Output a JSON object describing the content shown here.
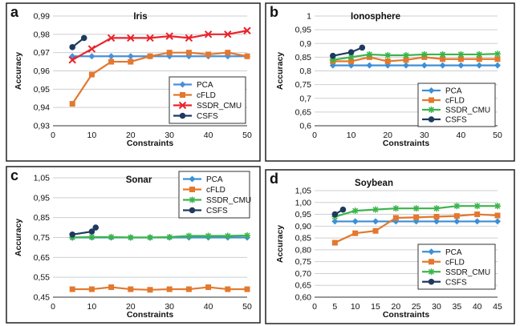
{
  "chart_data": [
    {
      "panel_letter": "a",
      "type": "line",
      "title": "Iris",
      "xlabel": "Constraints",
      "ylabel": "Accuracy",
      "xlim": [
        0,
        50
      ],
      "ylim": [
        0.93,
        0.99
      ],
      "xticks": [
        0,
        10,
        20,
        30,
        40,
        50
      ],
      "yticks": [
        0.93,
        0.94,
        0.95,
        0.96,
        0.97,
        0.98,
        0.99
      ],
      "ytick_labels": [
        "0,93",
        "0,94",
        "0,95",
        "0,96",
        "0,97",
        "0,98",
        "0,99"
      ],
      "grid": "horizontal",
      "legend_position": "lower-right",
      "series": [
        {
          "name": "PCA",
          "color": "#4a90d9",
          "marker": "diamond",
          "x": [
            5,
            10,
            15,
            20,
            25,
            30,
            35,
            40,
            45,
            50
          ],
          "y": [
            0.968,
            0.968,
            0.968,
            0.968,
            0.968,
            0.968,
            0.968,
            0.968,
            0.968,
            0.968
          ]
        },
        {
          "name": "cFLD",
          "color": "#e3782e",
          "marker": "square",
          "x": [
            5,
            10,
            15,
            20,
            25,
            30,
            35,
            40,
            45,
            50
          ],
          "y": [
            0.942,
            0.958,
            0.965,
            0.965,
            0.968,
            0.97,
            0.97,
            0.969,
            0.97,
            0.968
          ]
        },
        {
          "name": "SSDR_CMU",
          "color": "#e8242c",
          "marker": "x",
          "x": [
            5,
            10,
            15,
            20,
            25,
            30,
            35,
            40,
            45,
            50
          ],
          "y": [
            0.966,
            0.972,
            0.978,
            0.978,
            0.978,
            0.979,
            0.978,
            0.98,
            0.98,
            0.982
          ]
        },
        {
          "name": "CSFS",
          "color": "#1f3a5f",
          "marker": "circle",
          "x": [
            5,
            8
          ],
          "y": [
            0.973,
            0.978
          ]
        }
      ]
    },
    {
      "panel_letter": "b",
      "type": "line",
      "title": "Ionosphere",
      "xlabel": "Constraints",
      "ylabel": "Accuracy",
      "xlim": [
        0,
        50
      ],
      "ylim": [
        0.6,
        1.0
      ],
      "xticks": [
        0,
        10,
        20,
        30,
        40,
        50
      ],
      "yticks": [
        0.6,
        0.65,
        0.7,
        0.75,
        0.8,
        0.85,
        0.9,
        0.95,
        1.0
      ],
      "ytick_labels": [
        "0,6",
        "0,65",
        "0,7",
        "0,75",
        "0,8",
        "0,85",
        "0,9",
        "0,95",
        "1"
      ],
      "grid": "horizontal",
      "legend_position": "lower-right",
      "series": [
        {
          "name": "PCA",
          "color": "#3d8fd6",
          "marker": "diamond",
          "x": [
            5,
            10,
            15,
            20,
            25,
            30,
            35,
            40,
            45,
            50
          ],
          "y": [
            0.82,
            0.82,
            0.82,
            0.82,
            0.82,
            0.82,
            0.82,
            0.82,
            0.82,
            0.82
          ]
        },
        {
          "name": "cFLD",
          "color": "#e3782e",
          "marker": "square",
          "x": [
            5,
            10,
            15,
            20,
            25,
            30,
            35,
            40,
            45,
            50
          ],
          "y": [
            0.835,
            0.835,
            0.85,
            0.835,
            0.84,
            0.85,
            0.843,
            0.843,
            0.843,
            0.843
          ]
        },
        {
          "name": "SSDR_CMU",
          "color": "#3cb44b",
          "marker": "star",
          "x": [
            5,
            10,
            15,
            20,
            25,
            30,
            35,
            40,
            45,
            50
          ],
          "y": [
            0.84,
            0.85,
            0.86,
            0.857,
            0.857,
            0.86,
            0.86,
            0.86,
            0.86,
            0.862
          ]
        },
        {
          "name": "CSFS",
          "color": "#1f3a5f",
          "marker": "circle",
          "x": [
            5,
            10,
            13
          ],
          "y": [
            0.855,
            0.868,
            0.885
          ]
        }
      ]
    },
    {
      "panel_letter": "c",
      "type": "line",
      "title": "Sonar",
      "xlabel": "Constraints",
      "ylabel": "Accuracy",
      "xlim": [
        0,
        50
      ],
      "ylim": [
        0.45,
        1.05
      ],
      "xticks": [
        0,
        10,
        20,
        30,
        40,
        50
      ],
      "yticks": [
        0.45,
        0.55,
        0.65,
        0.75,
        0.85,
        0.95,
        1.05
      ],
      "ytick_labels": [
        "0,45",
        "0,55",
        "0,65",
        "0,75",
        "0,85",
        "0,95",
        "1,05"
      ],
      "grid": "horizontal",
      "legend_position": "upper-right",
      "series": [
        {
          "name": "PCA",
          "color": "#3d8fd6",
          "marker": "diamond",
          "x": [
            5,
            10,
            15,
            20,
            25,
            30,
            35,
            40,
            45,
            50
          ],
          "y": [
            0.75,
            0.75,
            0.75,
            0.75,
            0.75,
            0.75,
            0.75,
            0.75,
            0.75,
            0.75
          ]
        },
        {
          "name": "cFLD",
          "color": "#e3782e",
          "marker": "square",
          "x": [
            5,
            10,
            15,
            20,
            25,
            30,
            35,
            40,
            45,
            50
          ],
          "y": [
            0.49,
            0.49,
            0.5,
            0.49,
            0.487,
            0.49,
            0.49,
            0.5,
            0.49,
            0.49
          ]
        },
        {
          "name": "SSDR_CMU",
          "color": "#3cb44b",
          "marker": "star",
          "x": [
            5,
            10,
            15,
            20,
            25,
            30,
            35,
            40,
            45,
            50
          ],
          "y": [
            0.75,
            0.752,
            0.752,
            0.75,
            0.75,
            0.752,
            0.758,
            0.758,
            0.758,
            0.76
          ]
        },
        {
          "name": "CSFS",
          "color": "#1f3a5f",
          "marker": "circle",
          "x": [
            5,
            10,
            11
          ],
          "y": [
            0.765,
            0.78,
            0.8
          ]
        }
      ]
    },
    {
      "panel_letter": "d",
      "type": "line",
      "title": "Soybean",
      "xlabel": "Constraints",
      "ylabel": "Accuracy",
      "xlim": [
        0,
        45
      ],
      "ylim": [
        0.6,
        1.05
      ],
      "xticks": [
        0,
        5,
        10,
        15,
        20,
        25,
        30,
        35,
        40,
        45
      ],
      "yticks": [
        0.6,
        0.65,
        0.7,
        0.75,
        0.8,
        0.85,
        0.9,
        0.95,
        1.0,
        1.05
      ],
      "ytick_labels": [
        "0,60",
        "0,65",
        "0,70",
        "0,75",
        "0,80",
        "0,85",
        "0,90",
        "0,95",
        "1,00",
        "1,05"
      ],
      "grid": "horizontal",
      "legend_position": "lower-right",
      "series": [
        {
          "name": "PCA",
          "color": "#3d8fd6",
          "marker": "diamond",
          "x": [
            5,
            10,
            15,
            20,
            25,
            30,
            35,
            40,
            45
          ],
          "y": [
            0.92,
            0.92,
            0.92,
            0.92,
            0.92,
            0.92,
            0.92,
            0.92,
            0.92
          ]
        },
        {
          "name": "cFLD",
          "color": "#e3782e",
          "marker": "square",
          "x": [
            5,
            10,
            15,
            20,
            25,
            30,
            35,
            40,
            45
          ],
          "y": [
            0.83,
            0.87,
            0.88,
            0.935,
            0.937,
            0.94,
            0.943,
            0.95,
            0.945
          ]
        },
        {
          "name": "SSDR_CMU",
          "color": "#3cb44b",
          "marker": "star",
          "x": [
            5,
            10,
            15,
            20,
            25,
            30,
            35,
            40,
            45
          ],
          "y": [
            0.94,
            0.965,
            0.97,
            0.975,
            0.975,
            0.975,
            0.985,
            0.985,
            0.985
          ]
        },
        {
          "name": "CSFS",
          "color": "#1f3a5f",
          "marker": "circle",
          "x": [
            5,
            7
          ],
          "y": [
            0.95,
            0.97
          ]
        }
      ]
    }
  ]
}
